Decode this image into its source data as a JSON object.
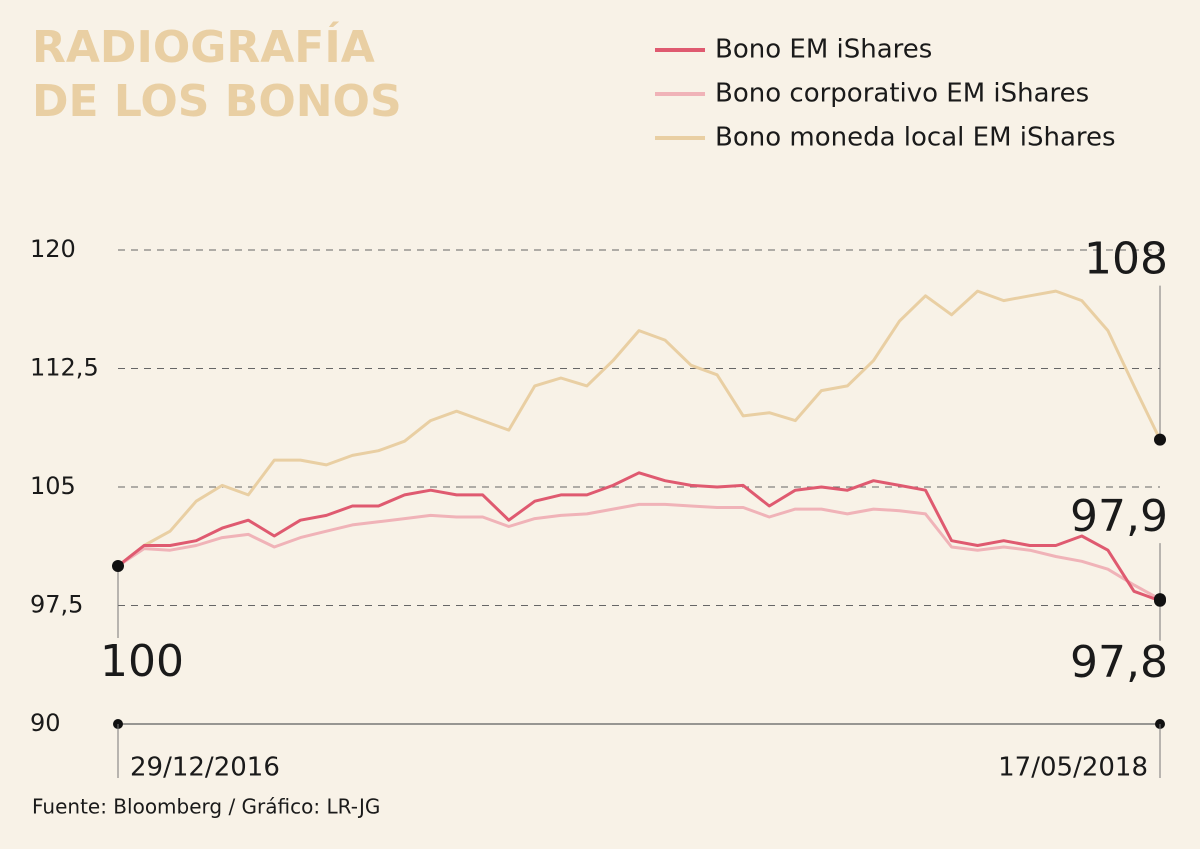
{
  "chart_data": {
    "type": "line",
    "title": [
      "RADIOGRAFÍA",
      "DE LOS BONOS"
    ],
    "source": "Fuente: Bloomberg / Gráfico: LR-JG",
    "categories": [
      "29/12/2016",
      null,
      null,
      null,
      null,
      null,
      null,
      null,
      null,
      null,
      null,
      null,
      null,
      null,
      null,
      null,
      null,
      null,
      null,
      null,
      null,
      null,
      null,
      null,
      null,
      null,
      null,
      null,
      null,
      null,
      null,
      null,
      null,
      null,
      null,
      null,
      null,
      null,
      null,
      null,
      "17/05/2018"
    ],
    "series": [
      {
        "name": "Bono EM iShares",
        "color": "#df5a70",
        "values": [
          100,
          101.3,
          101.3,
          101.6,
          102.4,
          102.9,
          101.9,
          102.9,
          103.2,
          103.8,
          103.8,
          104.5,
          104.8,
          104.5,
          104.5,
          102.9,
          104.1,
          104.5,
          104.5,
          105.1,
          105.9,
          105.4,
          105.1,
          105.0,
          105.1,
          103.8,
          104.8,
          105.0,
          104.8,
          105.4,
          105.1,
          104.8,
          101.6,
          101.3,
          101.6,
          101.3,
          101.3,
          101.9,
          101.0,
          98.4,
          97.8
        ]
      },
      {
        "name": "Bono corporativo EM iShares",
        "color": "#f0b3b8",
        "values": [
          100,
          101.1,
          101.0,
          101.3,
          101.8,
          102.0,
          101.2,
          101.8,
          102.2,
          102.6,
          102.8,
          103.0,
          103.2,
          103.1,
          103.1,
          102.5,
          103.0,
          103.2,
          103.3,
          103.6,
          103.9,
          103.9,
          103.8,
          103.7,
          103.7,
          103.1,
          103.6,
          103.6,
          103.3,
          103.6,
          103.5,
          103.3,
          101.2,
          101.0,
          101.2,
          101.0,
          100.6,
          100.3,
          99.8,
          98.8,
          97.9
        ]
      },
      {
        "name": "Bono moneda local EM iShares",
        "color": "#e9cfa3",
        "values": [
          100,
          101.3,
          102.2,
          104.1,
          105.1,
          104.5,
          106.7,
          106.7,
          106.4,
          107.0,
          107.3,
          107.9,
          109.2,
          109.8,
          109.2,
          108.6,
          111.4,
          111.9,
          111.4,
          113.0,
          114.9,
          114.3,
          112.7,
          112.1,
          109.5,
          109.7,
          109.2,
          111.1,
          111.4,
          113.0,
          115.5,
          117.1,
          115.9,
          117.4,
          116.8,
          117.1,
          117.4,
          116.8,
          114.9,
          111.4,
          108
        ]
      }
    ],
    "start_label": 100,
    "end_labels": [
      108,
      {
        "value": 97.9,
        "label": "97,9"
      },
      {
        "value": 97.8,
        "label": "97,8"
      }
    ],
    "ylim": [
      90,
      120
    ],
    "yticks": [
      90,
      {
        "value": 97.5,
        "label": "97,5"
      },
      105,
      {
        "value": 112.5,
        "label": "112,5"
      },
      120
    ],
    "grid": true
  }
}
